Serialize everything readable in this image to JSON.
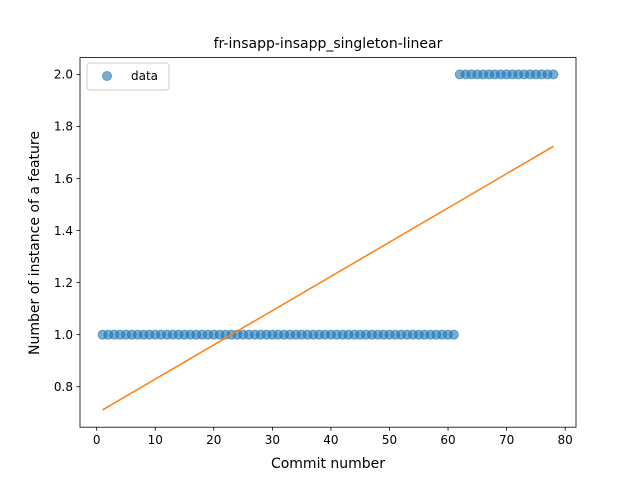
{
  "chart_data": {
    "type": "scatter",
    "title": "fr-insapp-insapp_singleton-linear",
    "xlabel": "Commit number",
    "ylabel": "Number of instance of a feature",
    "xlim": [
      -2.85,
      81.85
    ],
    "ylim": [
      0.6445,
      2.0645
    ],
    "xticks": [
      0,
      10,
      20,
      30,
      40,
      50,
      60,
      70,
      80
    ],
    "yticks": [
      0.8,
      1.0,
      1.2,
      1.4,
      1.6,
      1.8,
      2.0
    ],
    "xtick_labels": [
      "0",
      "10",
      "20",
      "30",
      "40",
      "50",
      "60",
      "70",
      "80"
    ],
    "ytick_labels": [
      "0.8",
      "1.0",
      "1.2",
      "1.4",
      "1.6",
      "1.8",
      "2.0"
    ],
    "legend_position": "top-left",
    "grid": false,
    "series": [
      {
        "name": "data",
        "kind": "scatter",
        "color": "#1f77b4",
        "points": [
          [
            1,
            1
          ],
          [
            2,
            1
          ],
          [
            3,
            1
          ],
          [
            4,
            1
          ],
          [
            5,
            1
          ],
          [
            6,
            1
          ],
          [
            7,
            1
          ],
          [
            8,
            1
          ],
          [
            9,
            1
          ],
          [
            10,
            1
          ],
          [
            11,
            1
          ],
          [
            12,
            1
          ],
          [
            13,
            1
          ],
          [
            14,
            1
          ],
          [
            15,
            1
          ],
          [
            16,
            1
          ],
          [
            17,
            1
          ],
          [
            18,
            1
          ],
          [
            19,
            1
          ],
          [
            20,
            1
          ],
          [
            21,
            1
          ],
          [
            22,
            1
          ],
          [
            23,
            1
          ],
          [
            24,
            1
          ],
          [
            25,
            1
          ],
          [
            26,
            1
          ],
          [
            27,
            1
          ],
          [
            28,
            1
          ],
          [
            29,
            1
          ],
          [
            30,
            1
          ],
          [
            31,
            1
          ],
          [
            32,
            1
          ],
          [
            33,
            1
          ],
          [
            34,
            1
          ],
          [
            35,
            1
          ],
          [
            36,
            1
          ],
          [
            37,
            1
          ],
          [
            38,
            1
          ],
          [
            39,
            1
          ],
          [
            40,
            1
          ],
          [
            41,
            1
          ],
          [
            42,
            1
          ],
          [
            43,
            1
          ],
          [
            44,
            1
          ],
          [
            45,
            1
          ],
          [
            46,
            1
          ],
          [
            47,
            1
          ],
          [
            48,
            1
          ],
          [
            49,
            1
          ],
          [
            50,
            1
          ],
          [
            51,
            1
          ],
          [
            52,
            1
          ],
          [
            53,
            1
          ],
          [
            54,
            1
          ],
          [
            55,
            1
          ],
          [
            56,
            1
          ],
          [
            57,
            1
          ],
          [
            58,
            1
          ],
          [
            59,
            1
          ],
          [
            60,
            1
          ],
          [
            61,
            1
          ],
          [
            62,
            2
          ],
          [
            63,
            2
          ],
          [
            64,
            2
          ],
          [
            65,
            2
          ],
          [
            66,
            2
          ],
          [
            67,
            2
          ],
          [
            68,
            2
          ],
          [
            69,
            2
          ],
          [
            70,
            2
          ],
          [
            71,
            2
          ],
          [
            72,
            2
          ],
          [
            73,
            2
          ],
          [
            74,
            2
          ],
          [
            75,
            2
          ],
          [
            76,
            2
          ],
          [
            77,
            2
          ],
          [
            78,
            2
          ]
        ]
      },
      {
        "kind": "line",
        "color": "#ff7f0e",
        "points": [
          [
            1,
            0.7109
          ],
          [
            78,
            1.7236
          ]
        ]
      }
    ]
  }
}
